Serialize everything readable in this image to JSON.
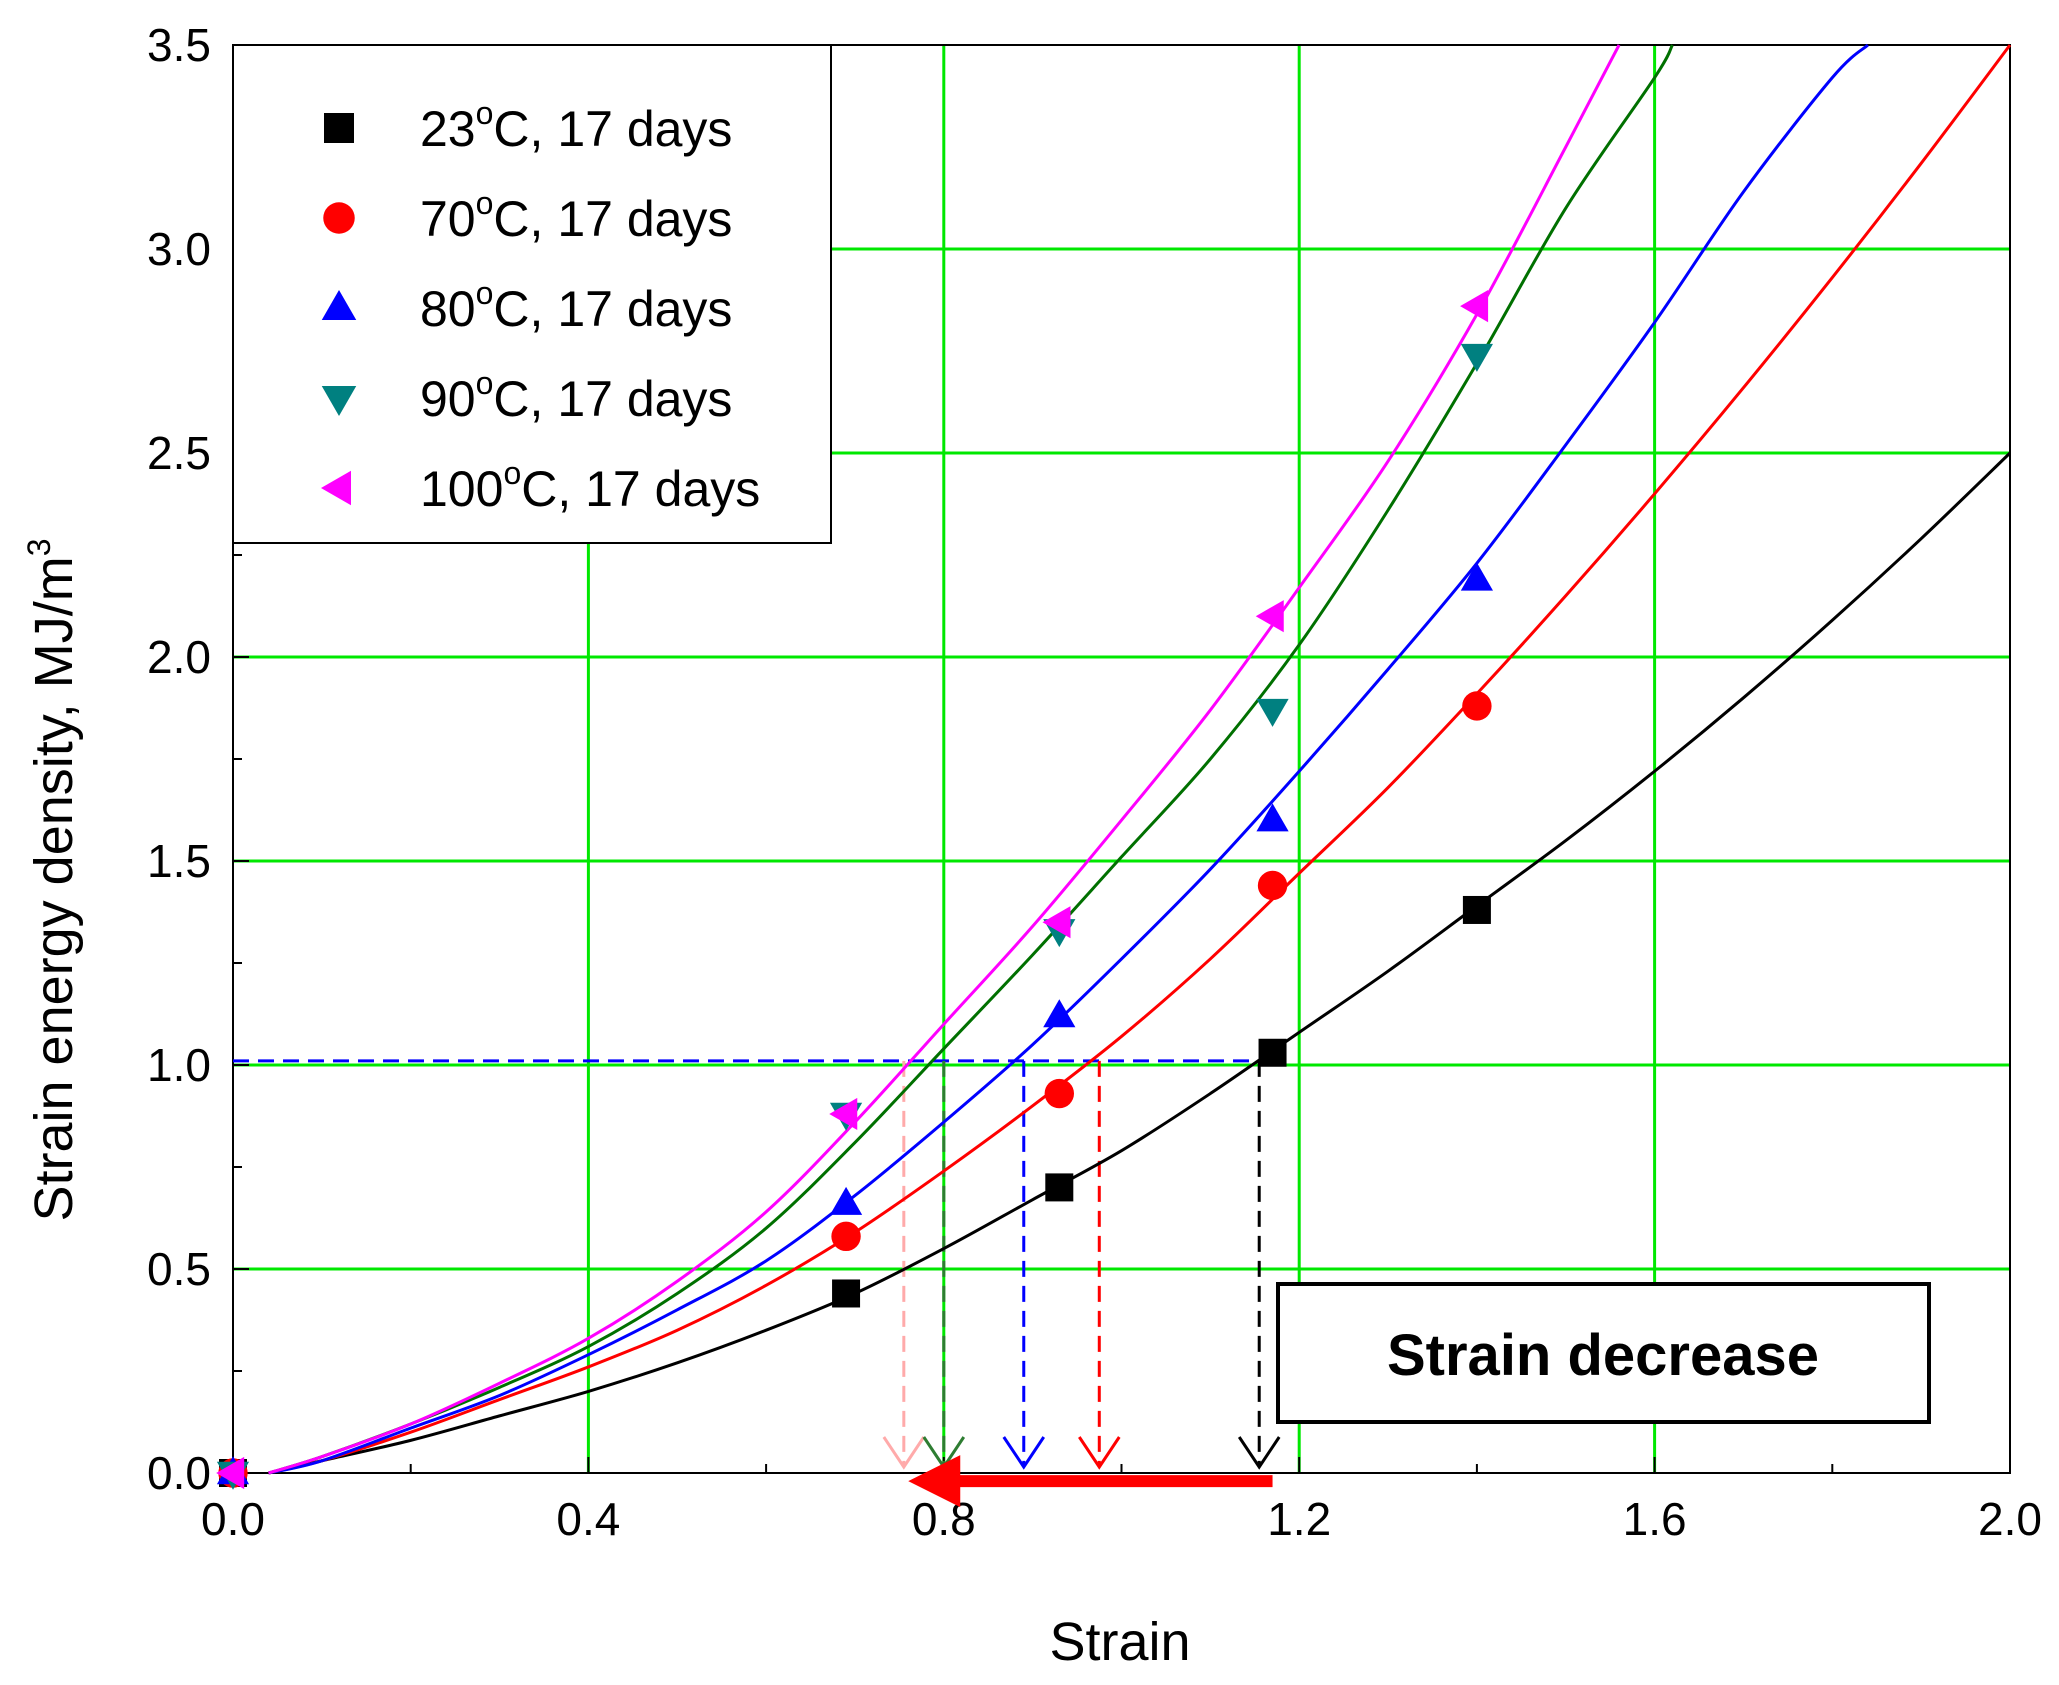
{
  "chart_data": {
    "type": "line",
    "title": "",
    "xlabel": "Strain",
    "ylabel": "Strain energy density, MJ/m",
    "ylabel_superscript": "3",
    "xlim": [
      0.0,
      2.0
    ],
    "ylim": [
      0.0,
      3.5
    ],
    "xticks": [
      "0.0",
      "0.4",
      "0.8",
      "1.2",
      "1.6",
      "2.0"
    ],
    "yticks": [
      "0.0",
      "0.5",
      "1.0",
      "1.5",
      "2.0",
      "2.5",
      "3.0",
      "3.5"
    ],
    "grid": true,
    "grid_color": "#00e800",
    "legend_position": "top-left",
    "series": [
      {
        "name": "23°C, 17 days",
        "legend_prefix": "23",
        "legend_sup": "o",
        "legend_suffix": "C, 17 days",
        "color": "#000000",
        "marker": "square",
        "points": [
          [
            0.0,
            0.0
          ],
          [
            0.69,
            0.44
          ],
          [
            0.93,
            0.7
          ],
          [
            1.17,
            1.03
          ],
          [
            1.4,
            1.38
          ]
        ],
        "fit_curve": [
          [
            0.04,
            0.0
          ],
          [
            0.1,
            0.03
          ],
          [
            0.2,
            0.08
          ],
          [
            0.3,
            0.14
          ],
          [
            0.4,
            0.2
          ],
          [
            0.5,
            0.27
          ],
          [
            0.6,
            0.35
          ],
          [
            0.7,
            0.44
          ],
          [
            0.8,
            0.55
          ],
          [
            0.9,
            0.67
          ],
          [
            1.0,
            0.79
          ],
          [
            1.1,
            0.93
          ],
          [
            1.2,
            1.08
          ],
          [
            1.3,
            1.23
          ],
          [
            1.4,
            1.39
          ],
          [
            1.5,
            1.55
          ],
          [
            1.6,
            1.72
          ],
          [
            1.7,
            1.9
          ],
          [
            1.8,
            2.09
          ],
          [
            1.9,
            2.29
          ],
          [
            2.0,
            2.5
          ]
        ]
      },
      {
        "name": "70°C, 17 days",
        "legend_prefix": "70",
        "legend_sup": "o",
        "legend_suffix": "C, 17 days",
        "color": "#ff0000",
        "marker": "circle",
        "points": [
          [
            0.0,
            0.0
          ],
          [
            0.69,
            0.58
          ],
          [
            0.93,
            0.93
          ],
          [
            1.17,
            1.44
          ],
          [
            1.4,
            1.88
          ]
        ],
        "fit_curve": [
          [
            0.04,
            0.0
          ],
          [
            0.1,
            0.03
          ],
          [
            0.2,
            0.1
          ],
          [
            0.3,
            0.18
          ],
          [
            0.4,
            0.26
          ],
          [
            0.5,
            0.35
          ],
          [
            0.6,
            0.46
          ],
          [
            0.7,
            0.59
          ],
          [
            0.8,
            0.74
          ],
          [
            0.9,
            0.9
          ],
          [
            1.0,
            1.07
          ],
          [
            1.1,
            1.26
          ],
          [
            1.2,
            1.47
          ],
          [
            1.3,
            1.68
          ],
          [
            1.4,
            1.91
          ],
          [
            1.5,
            2.15
          ],
          [
            1.6,
            2.4
          ],
          [
            1.7,
            2.66
          ],
          [
            1.8,
            2.93
          ],
          [
            1.9,
            3.21
          ],
          [
            2.0,
            3.5
          ]
        ]
      },
      {
        "name": "80°C, 17 days",
        "legend_prefix": "80",
        "legend_sup": "o",
        "legend_suffix": "C, 17 days",
        "color": "#0000ff",
        "marker": "triangle-up",
        "points": [
          [
            0.0,
            0.0
          ],
          [
            0.69,
            0.66
          ],
          [
            0.93,
            1.12
          ],
          [
            1.17,
            1.6
          ],
          [
            1.4,
            2.19
          ]
        ],
        "fit_curve": [
          [
            0.04,
            0.0
          ],
          [
            0.1,
            0.03
          ],
          [
            0.2,
            0.11
          ],
          [
            0.3,
            0.19
          ],
          [
            0.4,
            0.29
          ],
          [
            0.5,
            0.4
          ],
          [
            0.6,
            0.52
          ],
          [
            0.7,
            0.68
          ],
          [
            0.8,
            0.86
          ],
          [
            0.9,
            1.05
          ],
          [
            1.0,
            1.26
          ],
          [
            1.1,
            1.48
          ],
          [
            1.2,
            1.72
          ],
          [
            1.3,
            1.97
          ],
          [
            1.4,
            2.23
          ],
          [
            1.5,
            2.52
          ],
          [
            1.6,
            2.82
          ],
          [
            1.7,
            3.14
          ],
          [
            1.8,
            3.42
          ],
          [
            1.84,
            3.5
          ]
        ]
      },
      {
        "name": "90°C, 17 days",
        "legend_prefix": "90",
        "legend_sup": "o",
        "legend_suffix": "C, 17 days",
        "color": "#008080",
        "marker": "triangle-down",
        "line_color": "#007000",
        "points": [
          [
            0.0,
            0.0
          ],
          [
            0.69,
            0.88
          ],
          [
            0.93,
            1.33
          ],
          [
            1.17,
            1.87
          ],
          [
            1.4,
            2.74
          ]
        ],
        "fit_curve": [
          [
            0.04,
            0.0
          ],
          [
            0.1,
            0.04
          ],
          [
            0.2,
            0.12
          ],
          [
            0.3,
            0.21
          ],
          [
            0.4,
            0.31
          ],
          [
            0.5,
            0.44
          ],
          [
            0.6,
            0.6
          ],
          [
            0.7,
            0.81
          ],
          [
            0.8,
            1.04
          ],
          [
            0.9,
            1.27
          ],
          [
            1.0,
            1.51
          ],
          [
            1.1,
            1.75
          ],
          [
            1.2,
            2.03
          ],
          [
            1.3,
            2.36
          ],
          [
            1.4,
            2.72
          ],
          [
            1.5,
            3.1
          ],
          [
            1.6,
            3.42
          ],
          [
            1.62,
            3.5
          ]
        ]
      },
      {
        "name": "100°C, 17 days",
        "legend_prefix": "100",
        "legend_sup": "o",
        "legend_suffix": "C, 17 days",
        "color": "#ff00ff",
        "marker": "triangle-left",
        "points": [
          [
            0.0,
            0.0
          ],
          [
            0.69,
            0.88
          ],
          [
            0.93,
            1.35
          ],
          [
            1.17,
            2.1
          ],
          [
            1.4,
            2.86
          ]
        ],
        "fit_curve": [
          [
            0.04,
            0.0
          ],
          [
            0.1,
            0.04
          ],
          [
            0.2,
            0.12
          ],
          [
            0.3,
            0.22
          ],
          [
            0.4,
            0.33
          ],
          [
            0.5,
            0.47
          ],
          [
            0.6,
            0.64
          ],
          [
            0.7,
            0.86
          ],
          [
            0.8,
            1.1
          ],
          [
            0.9,
            1.34
          ],
          [
            1.0,
            1.6
          ],
          [
            1.1,
            1.87
          ],
          [
            1.2,
            2.17
          ],
          [
            1.3,
            2.48
          ],
          [
            1.4,
            2.84
          ],
          [
            1.5,
            3.25
          ],
          [
            1.56,
            3.5
          ]
        ]
      }
    ],
    "reference_line": {
      "y": 1.01,
      "x_from": 0.0,
      "x_to": 1.17,
      "color": "#0000ff",
      "style": "dashed"
    },
    "drop_lines": [
      {
        "x": 0.755,
        "color": "#ffaaaa"
      },
      {
        "x": 0.8,
        "color": "#2e7d32"
      },
      {
        "x": 0.89,
        "color": "#0000ff"
      },
      {
        "x": 0.975,
        "color": "#ff0000"
      },
      {
        "x": 1.155,
        "color": "#000000"
      }
    ],
    "arrow": {
      "x_from": 1.17,
      "x_to": 0.76,
      "y": -0.01,
      "color": "#ff0000"
    },
    "annotation": {
      "text": "Strain decrease"
    }
  }
}
